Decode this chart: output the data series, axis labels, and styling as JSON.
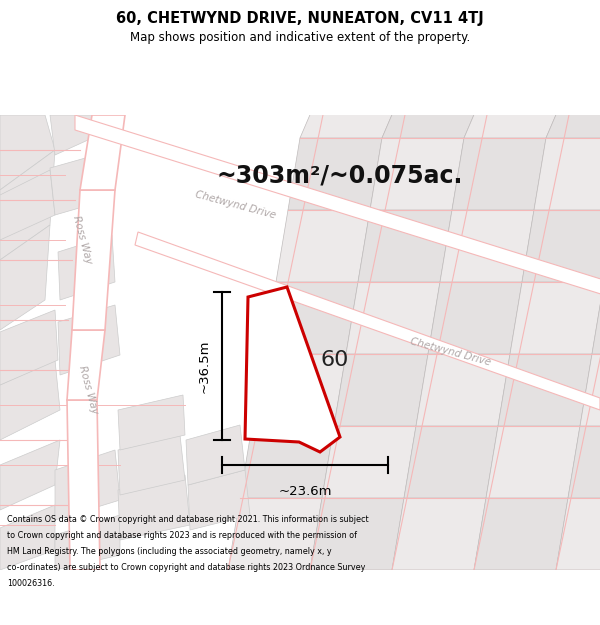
{
  "title_line1": "60, CHETWYND DRIVE, NUNEATON, CV11 4TJ",
  "title_line2": "Map shows position and indicative extent of the property.",
  "area_text": "~303m²/~0.075ac.",
  "label_number": "60",
  "dim_height": "~36.5m",
  "dim_width": "~23.6m",
  "footer_lines": [
    "Contains OS data © Crown copyright and database right 2021. This information is subject",
    "to Crown copyright and database rights 2023 and is reproduced with the permission of",
    "HM Land Registry. The polygons (including the associated geometry, namely x, y",
    "co-ordinates) are subject to Crown copyright and database rights 2023 Ordnance Survey",
    "100026316."
  ],
  "bg_color": "#ffffff",
  "map_bg": "#f9f6f6",
  "road_color": "#f5b8b8",
  "block_color": "#e8e4e4",
  "block_edge": "#cccccc",
  "plot_outline_color": "#cc0000",
  "plot_fill_color": "#ffffff",
  "dim_line_color": "#000000",
  "street_label_color": "#b0a8a8",
  "title_color": "#000000",
  "footer_color": "#000000"
}
